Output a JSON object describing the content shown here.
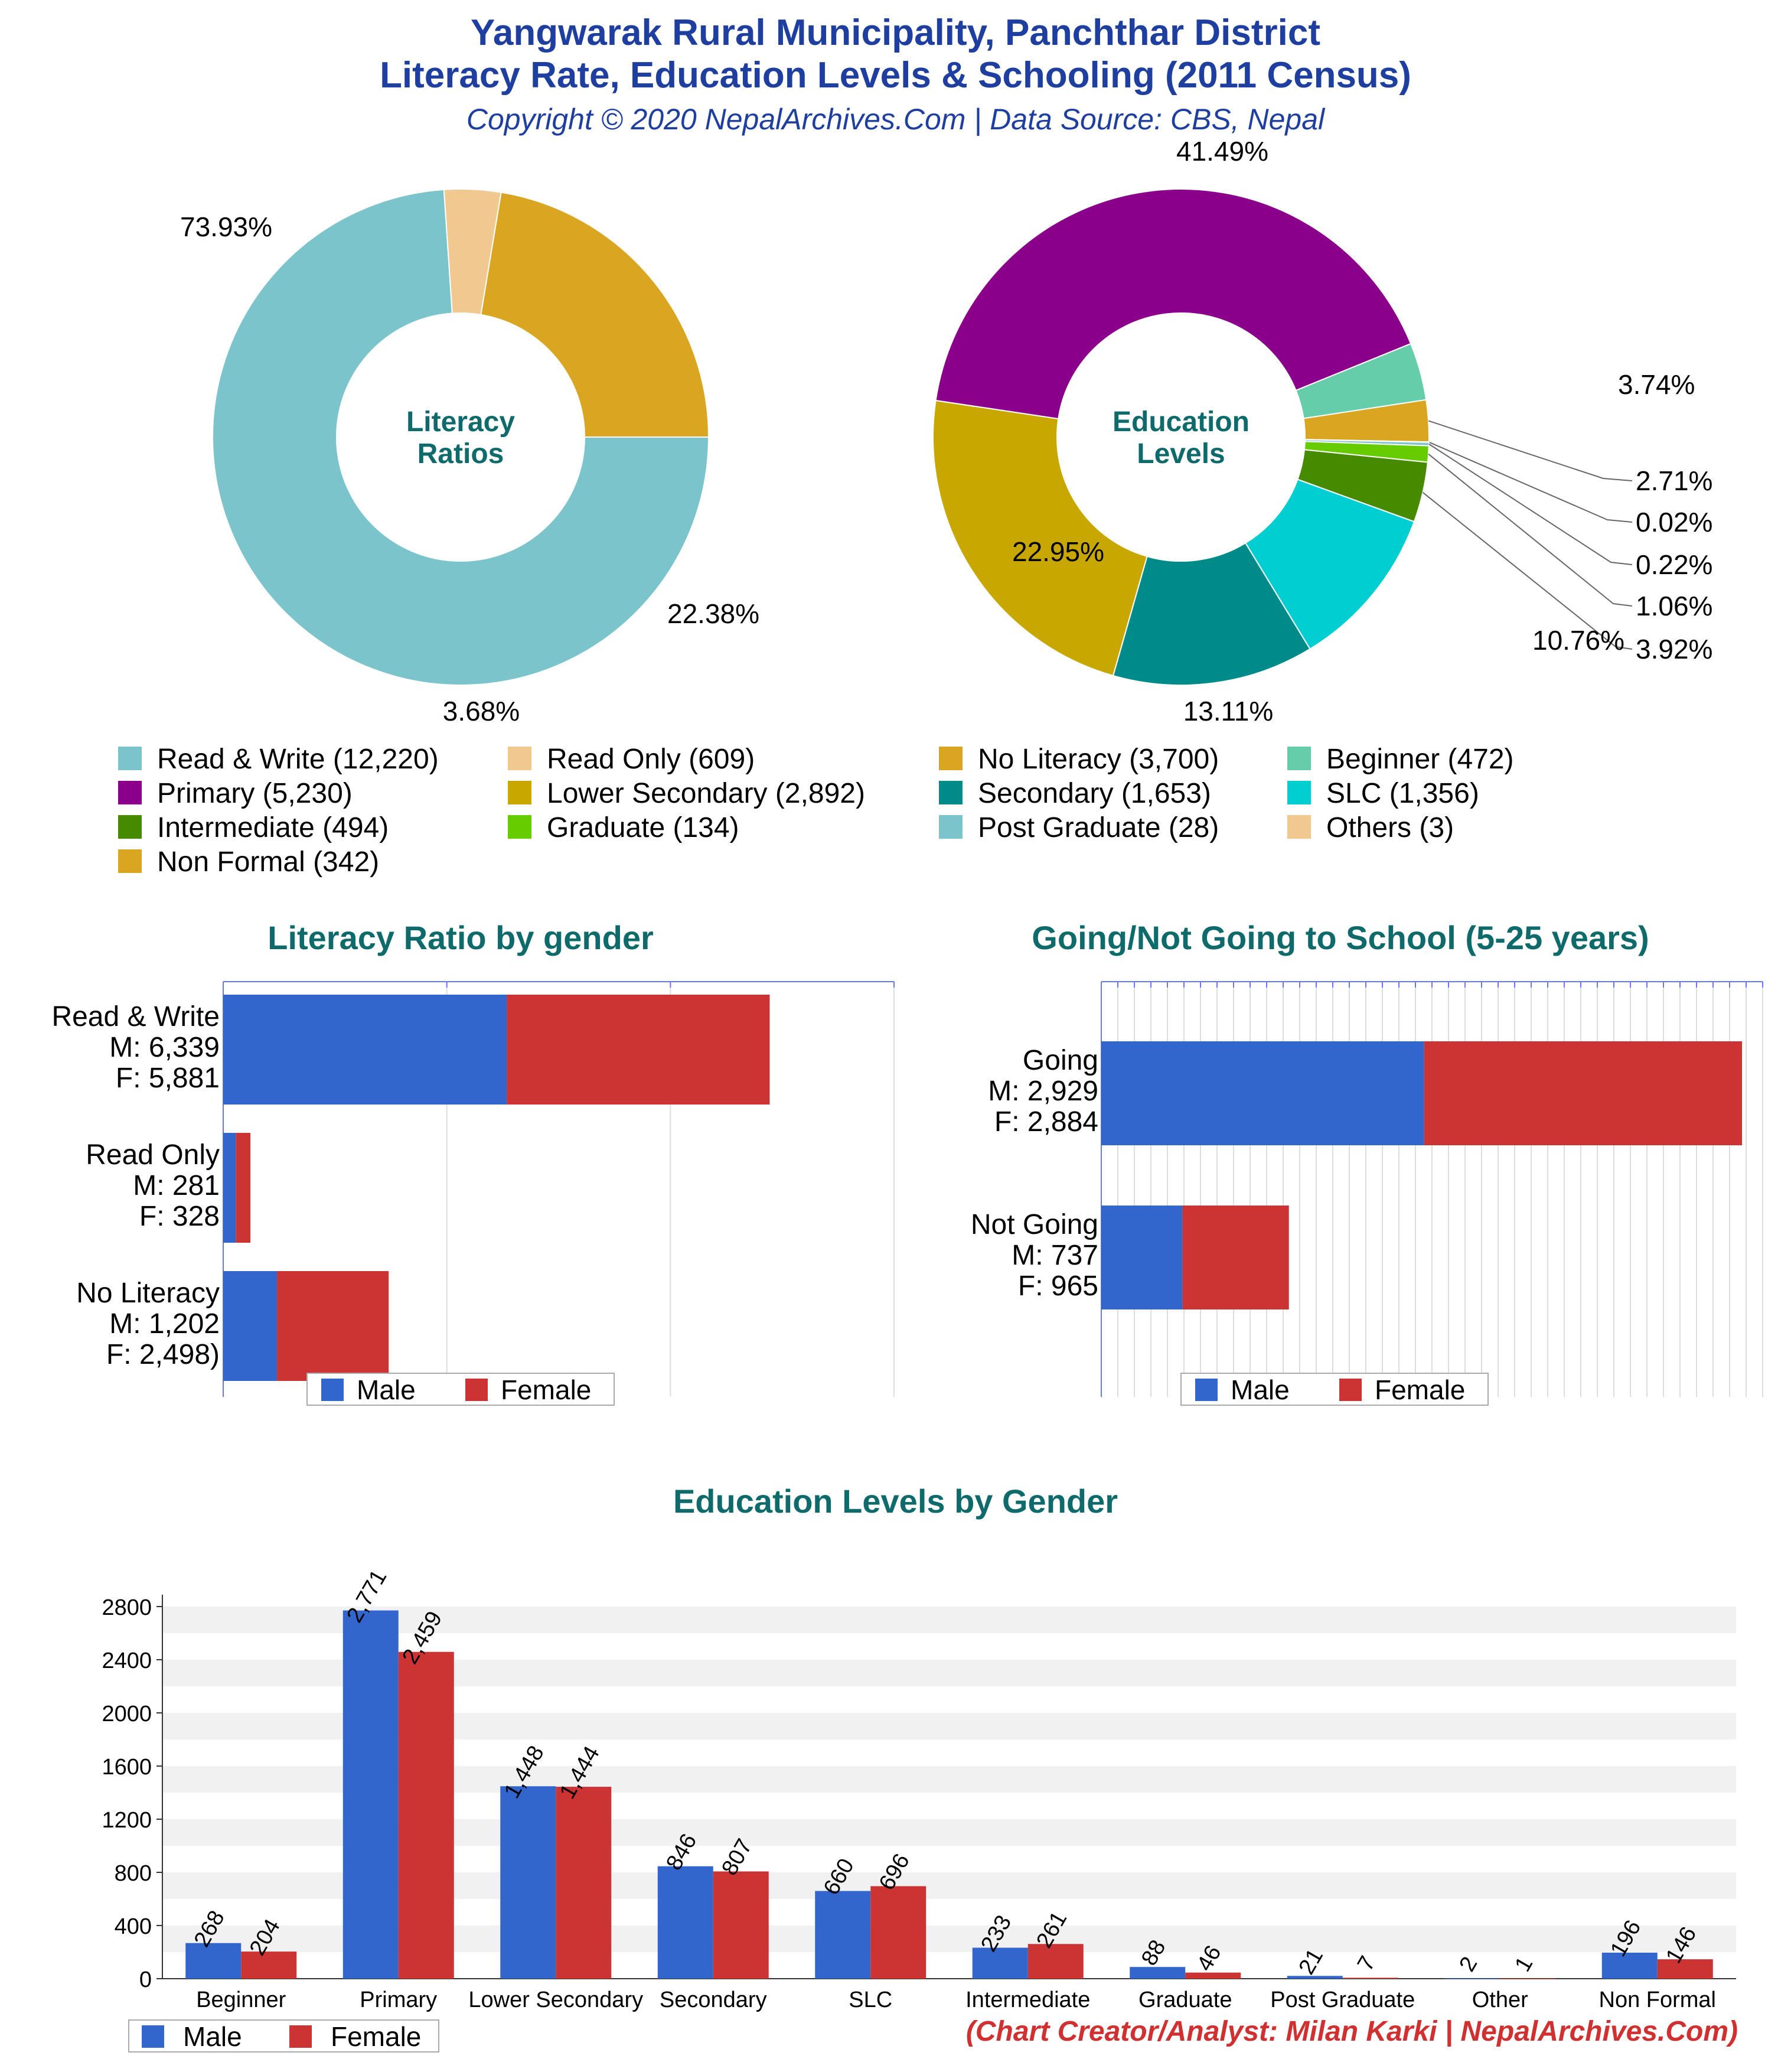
{
  "header": {
    "title_line1": "Yangwarak Rural Municipality, Panchthar District",
    "title_line2": "Literacy Rate, Education Levels & Schooling (2011 Census)",
    "subtitle": "Copyright © 2020 NepalArchives.Com | Data Source: CBS, Nepal"
  },
  "footer": "(Chart Creator/Analyst: Milan Karki | NepalArchives.Com)",
  "colors": {
    "male": "#3366cc",
    "female": "#cc3333",
    "title_blue": "#1f3fa0",
    "section_teal": "#0f6b6b",
    "footer_red": "#d03030"
  },
  "legend_common": {
    "male": "Male",
    "female": "Female"
  },
  "legend": [
    {
      "label": "Read & Write (12,220)",
      "color": "#7cc4cc"
    },
    {
      "label": "Read Only (609)",
      "color": "#f0c890"
    },
    {
      "label": "No Literacy (3,700)",
      "color": "#daa520"
    },
    {
      "label": "Beginner (472)",
      "color": "#66cdaa"
    },
    {
      "label": "Primary (5,230)",
      "color": "#8b008b"
    },
    {
      "label": "Lower Secondary (2,892)",
      "color": "#c8a800"
    },
    {
      "label": "Secondary (1,653)",
      "color": "#008b8b"
    },
    {
      "label": "SLC (1,356)",
      "color": "#00ced1"
    },
    {
      "label": "Intermediate (494)",
      "color": "#468a00"
    },
    {
      "label": "Graduate (134)",
      "color": "#66cc00"
    },
    {
      "label": "Post Graduate (28)",
      "color": "#7cc4cc"
    },
    {
      "label": "Others (3)",
      "color": "#f0c890"
    },
    {
      "label": "Non Formal (342)",
      "color": "#daa520"
    }
  ],
  "chart_data": [
    {
      "type": "pie",
      "title": "Literacy Ratios",
      "slices": [
        {
          "name": "Read & Write",
          "value": 12220,
          "percent": "73.93%",
          "color": "#7cc4cc"
        },
        {
          "name": "Read Only",
          "value": 609,
          "percent": "3.68%",
          "color": "#f0c890"
        },
        {
          "name": "No Literacy",
          "value": 3700,
          "percent": "22.38%",
          "color": "#daa520"
        }
      ]
    },
    {
      "type": "pie",
      "title": "Education Levels",
      "slices": [
        {
          "name": "Beginner",
          "value": 472,
          "percent": "3.74%",
          "color": "#66cdaa"
        },
        {
          "name": "Non Formal",
          "value": 342,
          "percent": "2.71%",
          "color": "#daa520"
        },
        {
          "name": "Others",
          "value": 3,
          "percent": "0.02%",
          "color": "#f0c890"
        },
        {
          "name": "Post Graduate",
          "value": 28,
          "percent": "0.22%",
          "color": "#7cc4cc"
        },
        {
          "name": "Graduate",
          "value": 134,
          "percent": "1.06%",
          "color": "#66cc00"
        },
        {
          "name": "Intermediate",
          "value": 494,
          "percent": "3.92%",
          "color": "#468a00"
        },
        {
          "name": "SLC",
          "value": 1356,
          "percent": "10.76%",
          "color": "#00ced1"
        },
        {
          "name": "Secondary",
          "value": 1653,
          "percent": "13.11%",
          "color": "#008b8b"
        },
        {
          "name": "Lower Secondary",
          "value": 2892,
          "percent": "22.95%",
          "color": "#c8a800"
        },
        {
          "name": "Primary",
          "value": 5230,
          "percent": "41.49%",
          "color": "#8b008b"
        }
      ]
    },
    {
      "type": "bar",
      "orientation": "horizontal",
      "stacked": true,
      "title": "Literacy Ratio by gender",
      "categories": [
        "Read & Write",
        "Read Only",
        "No Literacy"
      ],
      "category_labels": [
        "Read & Write\nM: 6,339\nF: 5,881",
        "Read Only\nM: 281\nF: 328",
        "No Literacy\nM: 1,202\nF: 2,498)"
      ],
      "series": [
        {
          "name": "Male",
          "values": [
            6339,
            281,
            1202
          ]
        },
        {
          "name": "Female",
          "values": [
            5881,
            328,
            2498
          ]
        }
      ],
      "xlim": [
        0,
        15000
      ],
      "legend": "bottom"
    },
    {
      "type": "bar",
      "orientation": "horizontal",
      "stacked": true,
      "title": "Going/Not Going to School (5-25 years)",
      "categories": [
        "Going",
        "Not Going"
      ],
      "category_labels": [
        "Going\nM: 2,929\nF: 2,884",
        "Not Going\nM: 737\nF: 965"
      ],
      "series": [
        {
          "name": "Male",
          "values": [
            2929,
            737
          ]
        },
        {
          "name": "Female",
          "values": [
            2884,
            965
          ]
        }
      ],
      "xlim": [
        0,
        6000
      ],
      "legend": "bottom"
    },
    {
      "type": "bar",
      "title": "Education Levels by Gender",
      "categories": [
        "Beginner",
        "Primary",
        "Lower Secondary",
        "Secondary",
        "SLC",
        "Intermediate",
        "Graduate",
        "Post Graduate",
        "Other",
        "Non Formal"
      ],
      "series": [
        {
          "name": "Male",
          "values": [
            268,
            2771,
            1448,
            846,
            660,
            233,
            88,
            21,
            2,
            196
          ]
        },
        {
          "name": "Female",
          "values": [
            204,
            2459,
            1444,
            807,
            696,
            261,
            46,
            7,
            1,
            146
          ]
        }
      ],
      "value_labels": {
        "male": [
          "268",
          "2,771",
          "1,448",
          "846",
          "660",
          "233",
          "88",
          "21",
          "2",
          "196"
        ],
        "female": [
          "204",
          "2,459",
          "1,444",
          "807",
          "696",
          "261",
          "46",
          "7",
          "1",
          "146"
        ]
      },
      "yticks": [
        "0",
        "400",
        "800",
        "1200",
        "1600",
        "2000",
        "2400",
        "2800"
      ],
      "ylim": [
        0,
        2800
      ],
      "legend": "bottom-left"
    }
  ]
}
